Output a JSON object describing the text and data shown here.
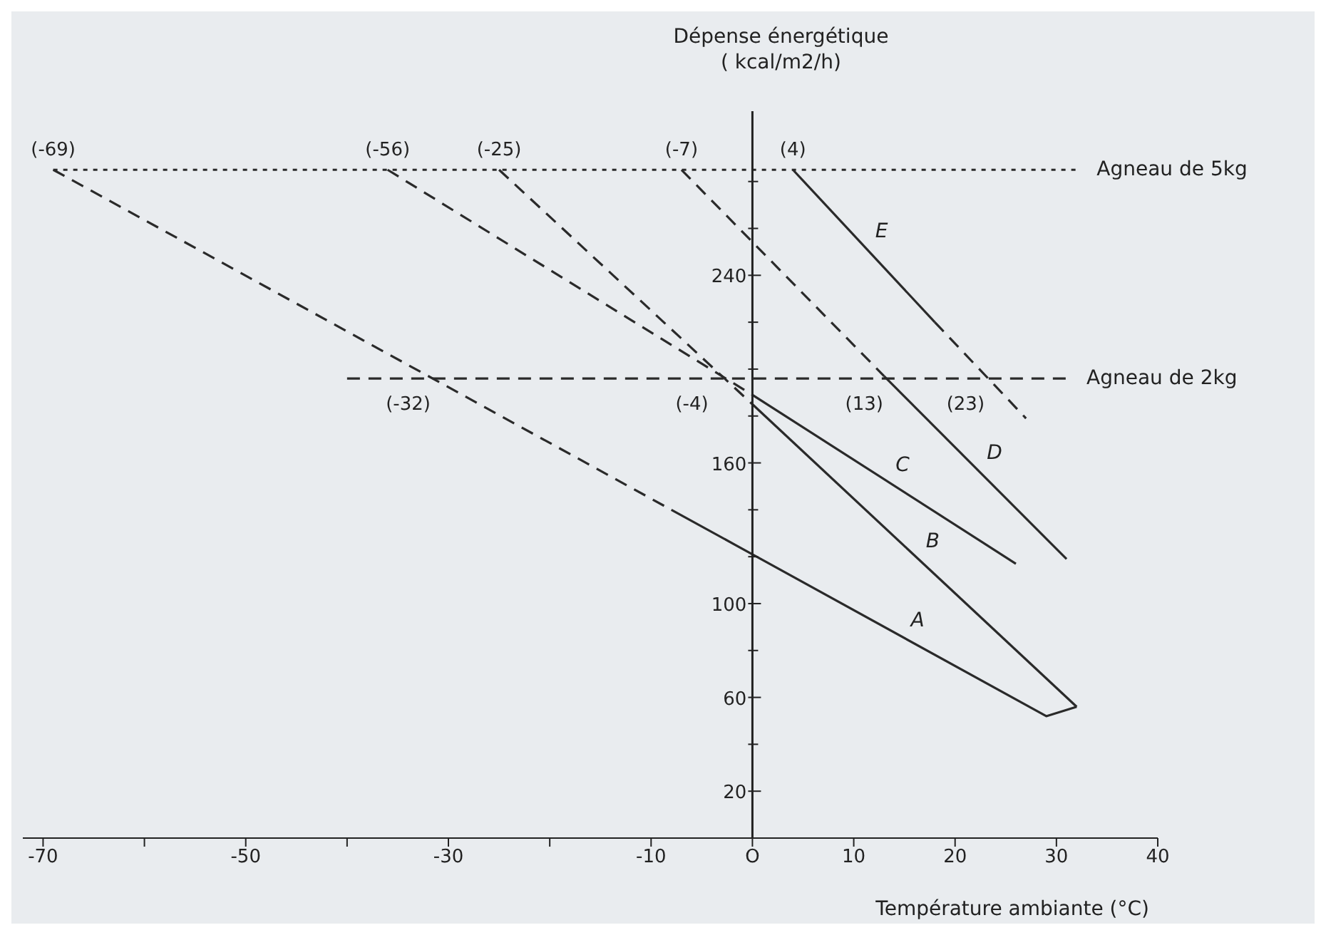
{
  "chart_data": {
    "type": "line",
    "xlabel": "Température ambiante (°C)",
    "ylabel": "Dépense énergétique\n( kcal/m2/h)",
    "xlim": [
      -72,
      40
    ],
    "xticks": [
      -70,
      {
        "value": -60,
        "label": null
      },
      -50,
      {
        "value": -40,
        "label": null
      },
      -30,
      {
        "value": -20,
        "label": null
      },
      -10,
      {
        "value": 0,
        "label": "O"
      },
      10,
      20,
      30,
      40
    ],
    "ylim": [
      0,
      310
    ],
    "yticks": [
      20,
      {
        "value": 40,
        "label": null
      },
      60,
      {
        "value": 80,
        "label": null
      },
      100,
      {
        "value": 120,
        "label": null
      },
      {
        "value": 140,
        "label": null
      },
      160,
      {
        "value": 180,
        "label": null
      },
      {
        "value": 200,
        "label": null
      },
      {
        "value": 220,
        "label": null
      },
      240,
      {
        "value": 260,
        "label": null
      },
      {
        "value": 280,
        "label": null
      }
    ],
    "grid": false,
    "legend": false,
    "marker": "none",
    "series": [
      {
        "name": "Agneau de 5kg",
        "color": "#2a2a2a",
        "x": [
          -69,
          32
        ],
        "values": [
          285,
          285
        ],
        "line_style": "dotted"
      },
      {
        "name": "Agneau de 2kg",
        "color": "#2a2a2a",
        "x": [
          -40,
          31
        ],
        "values": [
          196,
          196
        ],
        "line_style": "dashed"
      },
      {
        "color": "#2a2a2a",
        "x": [
          -69,
          -8
        ],
        "values": [
          285,
          140
        ],
        "line_style": "dashed"
      },
      {
        "name": "A",
        "color": "#2a2a2a",
        "x": [
          -8,
          0,
          29,
          32
        ],
        "values": [
          140,
          121,
          52,
          56
        ],
        "line_style": "solid"
      },
      {
        "color": "#2a2a2a",
        "x": [
          -25,
          0
        ],
        "values": [
          285,
          185
        ],
        "line_style": "dashed"
      },
      {
        "name": "B",
        "color": "#2a2a2a",
        "x": [
          0,
          32
        ],
        "values": [
          185,
          56
        ],
        "line_style": "solid"
      },
      {
        "color": "#2a2a2a",
        "x": [
          -36,
          0
        ],
        "values": [
          285,
          189
        ],
        "line_style": "dashed"
      },
      {
        "name": "C",
        "color": "#2a2a2a",
        "x": [
          0,
          26
        ],
        "values": [
          189,
          117
        ],
        "line_style": "solid"
      },
      {
        "color": "#2a2a2a",
        "x": [
          -7,
          13
        ],
        "values": [
          285,
          197
        ],
        "line_style": "dashed"
      },
      {
        "name": "D",
        "color": "#2a2a2a",
        "x": [
          13,
          31
        ],
        "values": [
          197,
          119
        ],
        "line_style": "solid"
      },
      {
        "name": "E",
        "color": "#2a2a2a",
        "x": [
          4,
          18
        ],
        "values": [
          285,
          220
        ],
        "line_style": "solid"
      },
      {
        "color": "#2a2a2a",
        "x": [
          18,
          27
        ],
        "values": [
          220,
          179
        ],
        "line_style": "dashed"
      }
    ],
    "annotations": [
      {
        "text": "(-69)",
        "x": -69,
        "y": 285
      },
      {
        "text": "(-56)",
        "x": -36,
        "y": 285
      },
      {
        "text": "(-25)",
        "x": -25,
        "y": 285
      },
      {
        "text": "(-7)",
        "x": -7,
        "y": 285
      },
      {
        "text": "(4)",
        "x": 4,
        "y": 285
      },
      {
        "text": "(-32)",
        "x": -32,
        "y": 196
      },
      {
        "text": "(-4)",
        "x": -4,
        "y": 196
      },
      {
        "text": "(13)",
        "x": 13,
        "y": 196
      },
      {
        "text": "(23)",
        "x": 23,
        "y": 196
      }
    ]
  }
}
